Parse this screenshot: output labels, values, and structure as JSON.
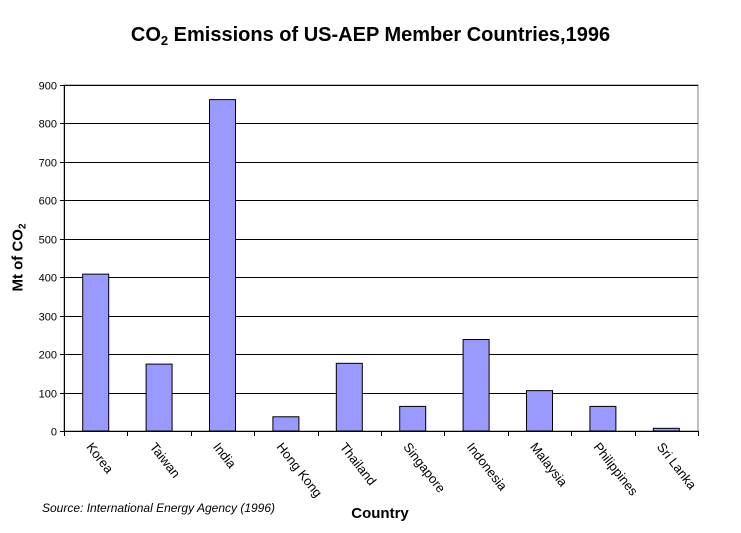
{
  "chart_data": {
    "type": "bar",
    "title": "CO",
    "title_subscript": "2",
    "title_rest": " Emissions of US-AEP Member Countries,1996",
    "xlabel": "Country",
    "ylabel": "Mt of CO",
    "ylabel_subscript": "2",
    "categories": [
      "Korea",
      "Taiwan",
      "India",
      "Hong Kong",
      "Thailand",
      "Singapore",
      "Indonesia",
      "Malaysia",
      "Philippines",
      "Sri Lanka"
    ],
    "values": [
      408,
      174,
      862,
      37,
      176,
      64,
      238,
      105,
      64,
      7
    ],
    "ylim": [
      0,
      900
    ],
    "yticks": [
      0,
      100,
      200,
      300,
      400,
      500,
      600,
      700,
      800,
      900
    ],
    "grid": true,
    "bar_color": "#9999ff",
    "source": "Source:  International Energy Agency (1996)"
  }
}
